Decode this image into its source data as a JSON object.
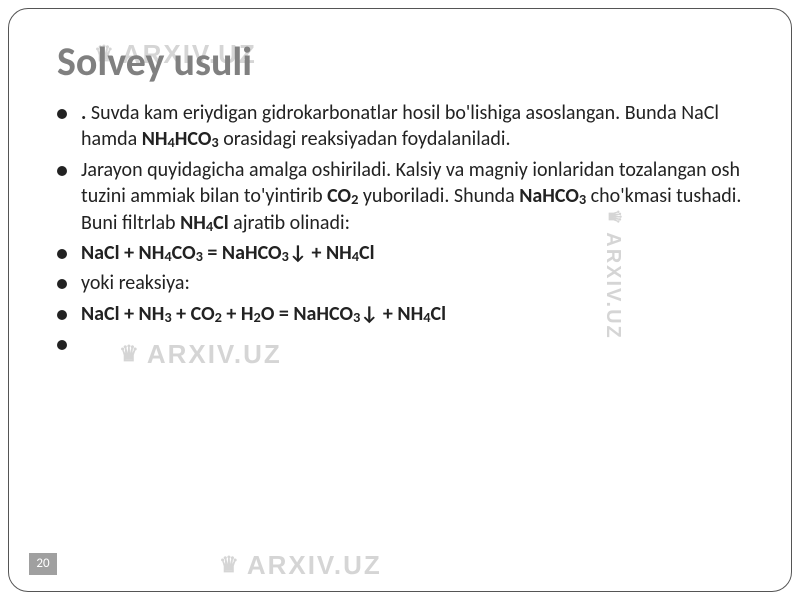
{
  "watermark": "ARXIV.UZ",
  "watermark_color": "#888888",
  "title": "Solvey  usuli",
  "title_color": "#808080",
  "title_fontsize": 40,
  "body_fontsize": 20,
  "body_color": "#222222",
  "border_color": "#555555",
  "border_radius": 20,
  "page_number": "20",
  "pagenum_bg": "#a0a0a0",
  "pagenum_fg": "#ffffff",
  "bullets": [
    {
      "prefix_bold": ". ",
      "parts": [
        {
          "t": "Suvda kam eriydigan gidrokarbonatlar hosil bo'lishiga asoslangan. Bunda NaCl hamda "
        },
        {
          "t": "NH",
          "b": true
        },
        {
          "t": "4",
          "b": true,
          "sub": true
        },
        {
          "t": "HCO",
          "b": true
        },
        {
          "t": "3",
          "b": true,
          "sub": true
        },
        {
          "t": " orasidagi reaksiyadan foydalaniladi."
        }
      ]
    },
    {
      "parts": [
        {
          "t": "Jarayon quyidagicha amalga oshiriladi. Kalsiy va magniy ionlaridan tozalangan osh tuzini ammiak bilan to'yintirib "
        },
        {
          "t": "CO",
          "b": true
        },
        {
          "t": "2",
          "b": true,
          "sub": true
        },
        {
          "t": " yuboriladi. Shunda "
        },
        {
          "t": "NaHCO",
          "b": true
        },
        {
          "t": "3",
          "b": true,
          "sub": true
        },
        {
          "t": " cho'kmasi tushadi. Buni filtrlab "
        },
        {
          "t": "NH",
          "b": true
        },
        {
          "t": "4",
          "b": true,
          "sub": true
        },
        {
          "t": "Cl",
          "b": true
        },
        {
          "t": " ajratib olinadi:"
        }
      ]
    },
    {
      "parts": [
        {
          "t": " NaCl + NH",
          "b": true
        },
        {
          "t": "4",
          "b": true,
          "sub": true
        },
        {
          "t": "CO",
          "b": true
        },
        {
          "t": "3",
          "b": true,
          "sub": true
        },
        {
          "t": " = NaHCO",
          "b": true
        },
        {
          "t": "3",
          "b": true,
          "sub": true
        },
        {
          "t": "↓ + NH",
          "b": true
        },
        {
          "t": "4",
          "b": true,
          "sub": true
        },
        {
          "t": "Cl",
          "b": true
        }
      ]
    },
    {
      "parts": [
        {
          "t": "yoki reaksiya:"
        }
      ]
    },
    {
      "parts": [
        {
          "t": "NaCl + NH",
          "b": true
        },
        {
          "t": "3",
          "b": true,
          "sub": true
        },
        {
          "t": " + CO",
          "b": true
        },
        {
          "t": "2",
          "b": true,
          "sub": true
        },
        {
          "t": " + H",
          "b": true
        },
        {
          "t": "2",
          "b": true,
          "sub": true
        },
        {
          "t": "O = NaHCO",
          "b": true
        },
        {
          "t": "3",
          "b": true,
          "sub": true
        },
        {
          "t": "↓ + NH",
          "b": true
        },
        {
          "t": "4",
          "b": true,
          "sub": true
        },
        {
          "t": "Cl",
          "b": true
        }
      ]
    },
    {
      "parts": [
        {
          "t": " "
        }
      ]
    }
  ]
}
